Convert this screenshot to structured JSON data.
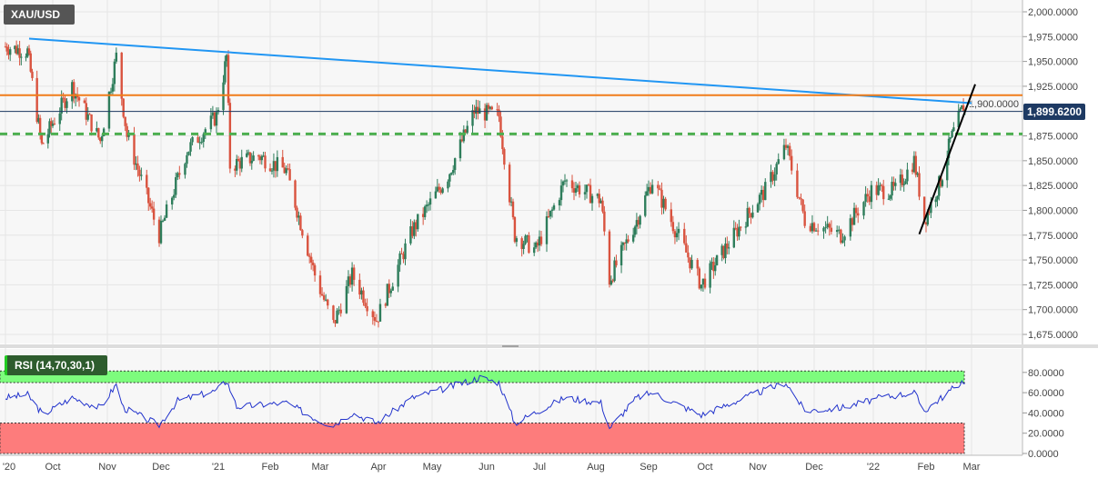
{
  "symbol": "XAU/USD",
  "last_price": "1,899.6200",
  "rsi_label": "RSI (14,70,30,1)",
  "colors": {
    "up": "#2e7d5b",
    "down": "#d9533f",
    "resistance_trend": "#2196f3",
    "horizontal": "#f07d1a",
    "support": "#4caf50",
    "uptrend": "#000000",
    "last": "#1e3a63",
    "rsi_line": "#2233cc",
    "overbought": "#7dfc7d",
    "oversold": "#fd7c7c"
  },
  "chart_data": [
    {
      "type": "candlestick",
      "xlabel": "",
      "ylabel": "",
      "x_ticks": [
        "'20",
        "Oct",
        "Nov",
        "Dec",
        "'21",
        "Feb",
        "Mar",
        "Apr",
        "May",
        "Jun",
        "Jul",
        "Aug",
        "Sep",
        "Oct",
        "Nov",
        "Dec",
        "'22",
        "Feb",
        "Mar"
      ],
      "y_ticks": [
        "2,000.0000",
        "1,975.0000",
        "1,950.0000",
        "1,925.0000",
        "1,900.0000",
        "1,875.0000",
        "1,850.0000",
        "1,825.0000",
        "1,800.0000",
        "1,775.0000",
        "1,750.0000",
        "1,725.0000",
        "1,700.0000",
        "1,675.0000"
      ],
      "ylim": [
        1670,
        2005
      ],
      "close_path": [
        [
          "2020-09-01",
          1965
        ],
        [
          "2020-09-15",
          1960
        ],
        [
          "2020-09-24",
          1865
        ],
        [
          "2020-10-12",
          1925
        ],
        [
          "2020-10-28",
          1870
        ],
        [
          "2020-11-06",
          1955
        ],
        [
          "2020-11-12",
          1875
        ],
        [
          "2020-11-30",
          1775
        ],
        [
          "2020-12-15",
          1860
        ],
        [
          "2020-12-31",
          1895
        ],
        [
          "2021-01-06",
          1955
        ],
        [
          "2021-01-08",
          1845
        ],
        [
          "2021-01-25",
          1855
        ],
        [
          "2021-02-10",
          1840
        ],
        [
          "2021-02-26",
          1735
        ],
        [
          "2021-03-08",
          1685
        ],
        [
          "2021-03-18",
          1735
        ],
        [
          "2021-03-31",
          1690
        ],
        [
          "2021-04-20",
          1780
        ],
        [
          "2021-05-10",
          1835
        ],
        [
          "2021-05-25",
          1900
        ],
        [
          "2021-06-08",
          1895
        ],
        [
          "2021-06-17",
          1775
        ],
        [
          "2021-06-29",
          1760
        ],
        [
          "2021-07-15",
          1830
        ],
        [
          "2021-08-04",
          1810
        ],
        [
          "2021-08-09",
          1730
        ],
        [
          "2021-08-25",
          1790
        ],
        [
          "2021-09-03",
          1830
        ],
        [
          "2021-09-29",
          1725
        ],
        [
          "2021-10-20",
          1780
        ],
        [
          "2021-11-05",
          1820
        ],
        [
          "2021-11-16",
          1865
        ],
        [
          "2021-11-26",
          1790
        ],
        [
          "2021-12-15",
          1775
        ],
        [
          "2021-12-31",
          1820
        ],
        [
          "2022-01-14",
          1820
        ],
        [
          "2022-01-25",
          1850
        ],
        [
          "2022-01-31",
          1790
        ],
        [
          "2022-02-10",
          1830
        ],
        [
          "2022-02-16",
          1870
        ],
        [
          "2022-02-24",
          1905
        ],
        [
          "2022-02-25",
          1899.62
        ]
      ],
      "lines": [
        {
          "kind": "trendline",
          "color": "resistance_trend",
          "points": [
            [
              "2020-09-16",
              1973
            ],
            [
              "2022-03-01",
              1908
            ]
          ]
        },
        {
          "kind": "horizontal",
          "color": "horizontal",
          "y": 1916
        },
        {
          "kind": "horizontal-dashed",
          "color": "support",
          "y": 1877
        },
        {
          "kind": "horizontal",
          "color": "last",
          "y": 1899.62
        },
        {
          "kind": "trendline",
          "color": "uptrend",
          "points": [
            [
              "2022-01-28",
              1776
            ],
            [
              "2022-03-03",
              1927
            ]
          ]
        }
      ]
    },
    {
      "type": "line",
      "y_ticks": [
        "80.0000",
        "60.0000",
        "40.0000",
        "20.0000",
        "0.0000"
      ],
      "ylim": [
        0,
        85
      ],
      "overbought": 70,
      "oversold": 30,
      "values": [
        [
          "2020-09-01",
          55
        ],
        [
          "2020-09-15",
          58
        ],
        [
          "2020-09-25",
          38
        ],
        [
          "2020-10-12",
          55
        ],
        [
          "2020-10-28",
          45
        ],
        [
          "2020-11-06",
          68
        ],
        [
          "2020-11-10",
          45
        ],
        [
          "2020-11-30",
          28
        ],
        [
          "2020-12-10",
          52
        ],
        [
          "2020-12-31",
          62
        ],
        [
          "2021-01-06",
          72
        ],
        [
          "2021-01-12",
          46
        ],
        [
          "2021-02-10",
          50
        ],
        [
          "2021-03-01",
          32
        ],
        [
          "2021-03-08",
          28
        ],
        [
          "2021-03-18",
          40
        ],
        [
          "2021-03-31",
          30
        ],
        [
          "2021-04-20",
          55
        ],
        [
          "2021-05-10",
          65
        ],
        [
          "2021-05-28",
          75
        ],
        [
          "2021-06-08",
          70
        ],
        [
          "2021-06-17",
          30
        ],
        [
          "2021-07-15",
          55
        ],
        [
          "2021-08-04",
          50
        ],
        [
          "2021-08-09",
          25
        ],
        [
          "2021-08-25",
          55
        ],
        [
          "2021-09-03",
          60
        ],
        [
          "2021-09-29",
          38
        ],
        [
          "2021-10-20",
          52
        ],
        [
          "2021-11-16",
          70
        ],
        [
          "2021-11-26",
          42
        ],
        [
          "2021-12-15",
          45
        ],
        [
          "2022-01-05",
          55
        ],
        [
          "2022-01-25",
          60
        ],
        [
          "2022-01-31",
          42
        ],
        [
          "2022-02-16",
          62
        ],
        [
          "2022-02-24",
          72
        ],
        [
          "2022-02-25",
          68
        ]
      ]
    }
  ]
}
